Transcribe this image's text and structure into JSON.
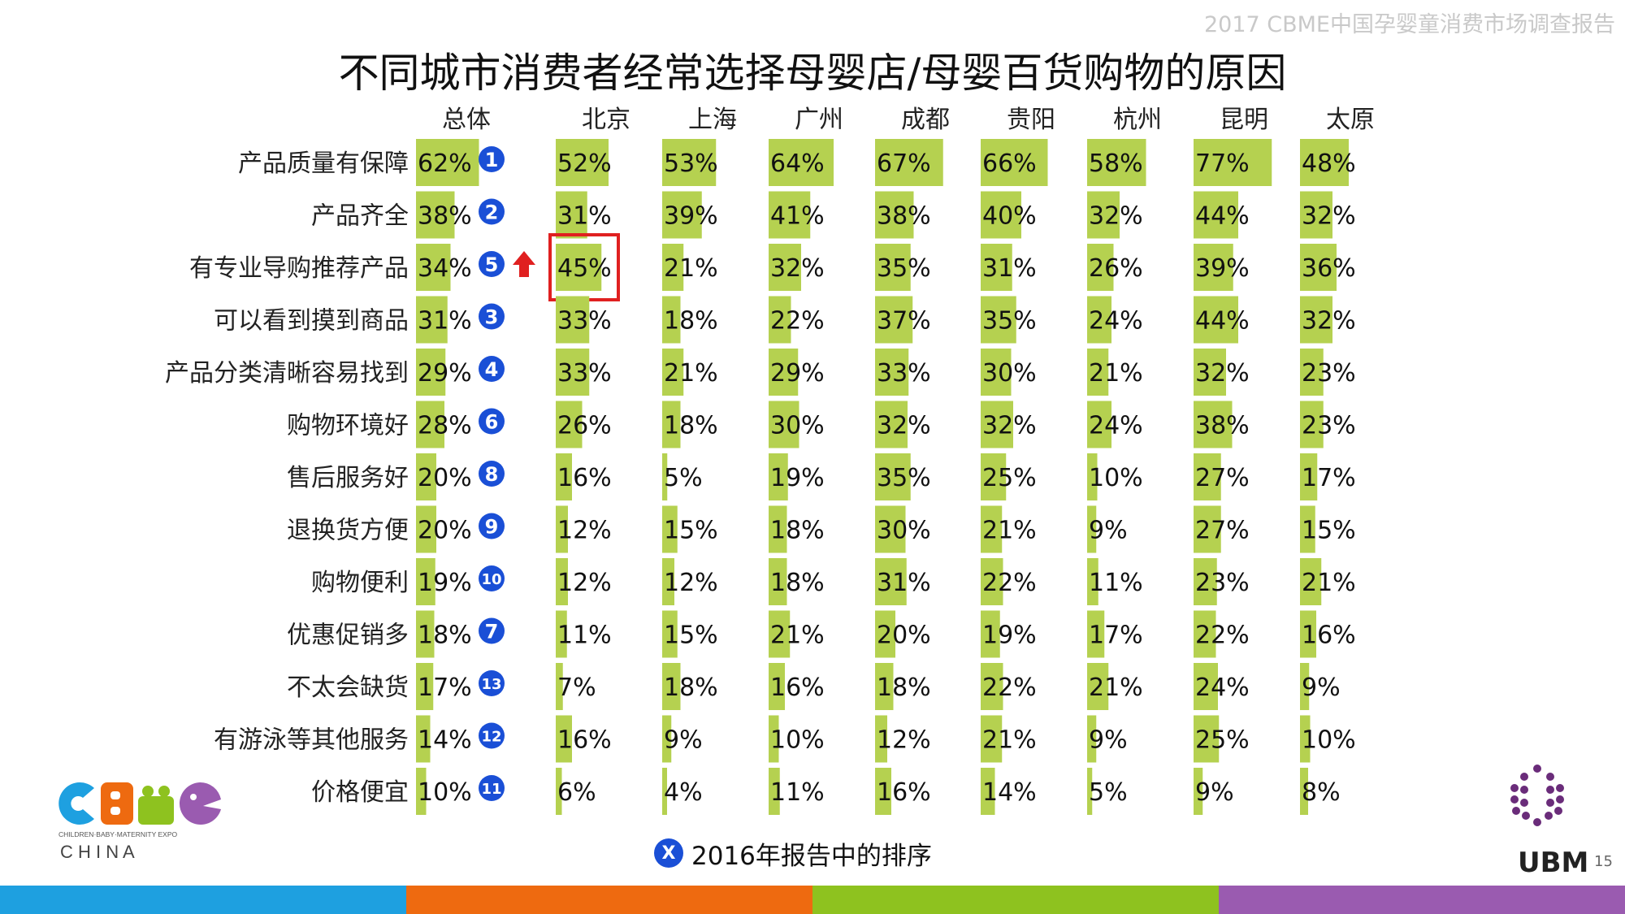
{
  "report_title": "2017 CBME中国孕婴童消费市场调查报告",
  "page_number": "15",
  "legend": {
    "badge": "X",
    "text": "2016年报告中的排序"
  },
  "brand": {
    "cbme_tagline": "CHILDREN·BABY·MATERNITY EXPO",
    "cbme_country": "C H I N A",
    "ubm": "UBM"
  },
  "colors": {
    "bar": "#b5d150",
    "rank_badge": "#1a4fd6",
    "highlight_box": "#e02020",
    "up_arrow": "#e02020",
    "band": [
      "#1ea0e0",
      "#ee6a10",
      "#8ec21f",
      "#9a5bb0"
    ]
  },
  "chart_data": {
    "type": "bar",
    "title": "不同城市消费者经常选择母婴店/母婴百货购物的原因",
    "categories": [
      "产品质量有保障",
      "产品齐全",
      "有专业导购推荐产品",
      "可以看到摸到商品",
      "产品分类清晰容易找到",
      "购物环境好",
      "售后服务好",
      "退换货方便",
      "购物便利",
      "优惠促销多",
      "不太会缺货",
      "有游泳等其他服务",
      "价格便宜"
    ],
    "columns": [
      "总体",
      "北京",
      "上海",
      "广州",
      "成都",
      "贵阳",
      "杭州",
      "昆明",
      "太原"
    ],
    "series": [
      {
        "name": "总体",
        "values": [
          62,
          38,
          34,
          31,
          29,
          28,
          20,
          20,
          19,
          18,
          17,
          14,
          10
        ]
      },
      {
        "name": "北京",
        "values": [
          52,
          31,
          45,
          33,
          33,
          26,
          16,
          12,
          12,
          11,
          7,
          16,
          6
        ]
      },
      {
        "name": "上海",
        "values": [
          53,
          39,
          21,
          18,
          21,
          18,
          5,
          15,
          12,
          15,
          18,
          9,
          4
        ]
      },
      {
        "name": "广州",
        "values": [
          64,
          41,
          32,
          22,
          29,
          30,
          19,
          18,
          18,
          21,
          16,
          10,
          11
        ]
      },
      {
        "name": "成都",
        "values": [
          67,
          38,
          35,
          37,
          33,
          32,
          35,
          30,
          31,
          20,
          18,
          12,
          16
        ]
      },
      {
        "name": "贵阳",
        "values": [
          66,
          40,
          31,
          35,
          30,
          32,
          25,
          21,
          22,
          19,
          22,
          21,
          14
        ]
      },
      {
        "name": "杭州",
        "values": [
          58,
          32,
          26,
          24,
          21,
          24,
          10,
          9,
          11,
          17,
          21,
          9,
          5
        ]
      },
      {
        "name": "昆明",
        "values": [
          77,
          44,
          39,
          44,
          32,
          38,
          27,
          27,
          23,
          22,
          24,
          25,
          9
        ]
      },
      {
        "name": "太原",
        "values": [
          48,
          32,
          36,
          32,
          23,
          23,
          17,
          15,
          21,
          16,
          9,
          10,
          8
        ]
      }
    ],
    "rank_2016": [
      "1",
      "2",
      "5",
      "3",
      "4",
      "6",
      "8",
      "9",
      "10",
      "7",
      "13",
      "12",
      "11"
    ],
    "highlight": {
      "category": "有专业导购推荐产品",
      "column": "北京",
      "value": 45
    },
    "rank_up": {
      "category": "有专业导购推荐产品",
      "direction": "up"
    },
    "value_unit": "%"
  }
}
